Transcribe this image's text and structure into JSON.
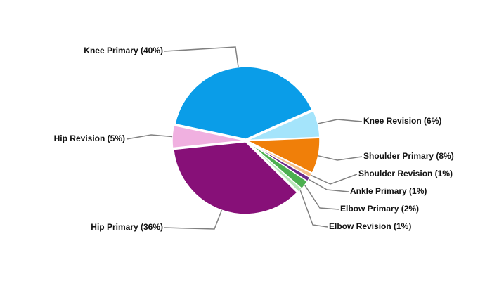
{
  "chart_data": {
    "type": "pie",
    "categories": [
      "Knee Primary (40%)",
      "Knee Revision (6%)",
      "Shoulder Primary (8%)",
      "Shoulder Revision (1%)",
      "Ankle Primary (1%)",
      "Elbow Primary (2%)",
      "Elbow Revision (1%)",
      "Hip Primary (36%)",
      "Hip Revision (5%)"
    ],
    "values": [
      40,
      6,
      8,
      1,
      1,
      2,
      1,
      36,
      5
    ],
    "colors": [
      "#0a9de8",
      "#a4e4fb",
      "#f07f09",
      "#f5c08a",
      "#6b2a8a",
      "#4caf50",
      "#b8e6b8",
      "#871078",
      "#f0b0e0"
    ]
  }
}
